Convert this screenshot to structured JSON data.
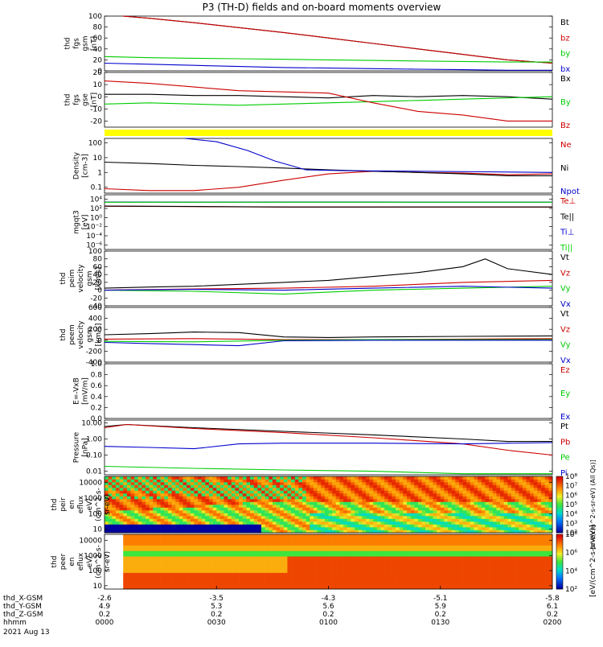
{
  "title": "P3 (TH-D) fields and on-board moments overview",
  "stripe_color": "#ffff00",
  "chart_data": [
    {
      "type": "line",
      "id": "p1",
      "ylabel": [
        "thd",
        "fgs",
        "gsm",
        "[nT]"
      ],
      "ylim": [
        0,
        100
      ],
      "ticks": [
        "0",
        "20",
        "40",
        "60",
        "80",
        "100"
      ],
      "tickvals": [
        0,
        20,
        40,
        60,
        80,
        100
      ],
      "series": [
        {
          "name": "Bt",
          "color": "#000000",
          "x": [
            0.04,
            0.1,
            0.2,
            0.3,
            0.4,
            0.5,
            0.6,
            0.7,
            0.8,
            0.9,
            1.0
          ],
          "y": [
            100,
            96,
            88,
            79,
            70,
            60,
            50,
            40,
            30,
            20,
            14
          ]
        },
        {
          "name": "bz",
          "color": "#cc0000",
          "x": [
            0.04,
            0.1,
            0.2,
            0.3,
            0.4,
            0.5,
            0.6,
            0.7,
            0.8,
            0.9,
            1.0
          ],
          "y": [
            100,
            96,
            88,
            79,
            70,
            60,
            50,
            40,
            30,
            20,
            14
          ]
        },
        {
          "name": "by",
          "color": "#00cc00",
          "x": [
            0.0,
            0.1,
            0.2,
            0.3,
            0.4,
            0.5,
            0.6,
            0.7,
            0.8,
            0.9,
            1.0
          ],
          "y": [
            26,
            24,
            23,
            22,
            21,
            20,
            19,
            18,
            17,
            16,
            16
          ]
        },
        {
          "name": "bx",
          "color": "#0000cc",
          "x": [
            0.0,
            0.1,
            0.2,
            0.3,
            0.4,
            0.5,
            0.6,
            0.7,
            0.8,
            0.9,
            1.0
          ],
          "y": [
            14,
            12,
            10,
            8,
            6,
            5,
            4,
            3,
            2,
            1,
            1
          ]
        }
      ]
    },
    {
      "type": "line",
      "id": "p2",
      "ylabel": [
        "thd",
        "fgs",
        "gse",
        "[nT]"
      ],
      "ylim": [
        -25,
        20
      ],
      "ticks": [
        "-20",
        "-10",
        "0",
        "10",
        "20"
      ],
      "tickvals": [
        -20,
        -10,
        0,
        10,
        20
      ],
      "series": [
        {
          "name": "Bx",
          "color": "#000000",
          "x": [
            0.0,
            0.1,
            0.2,
            0.3,
            0.4,
            0.5,
            0.6,
            0.7,
            0.8,
            0.9,
            1.0
          ],
          "y": [
            2,
            2,
            1,
            1,
            0,
            -1,
            1,
            0,
            1,
            0,
            -2
          ]
        },
        {
          "name": "By",
          "color": "#00cc00",
          "x": [
            0.0,
            0.1,
            0.2,
            0.3,
            0.4,
            0.5,
            0.6,
            0.7,
            0.8,
            0.9,
            1.0
          ],
          "y": [
            -6,
            -5,
            -6,
            -7,
            -6,
            -5,
            -4,
            -3,
            -2,
            -1,
            0
          ]
        },
        {
          "name": "Bz",
          "color": "#cc0000",
          "x": [
            0.0,
            0.1,
            0.2,
            0.3,
            0.4,
            0.5,
            0.6,
            0.7,
            0.8,
            0.9,
            1.0
          ],
          "y": [
            13,
            11,
            8,
            5,
            4,
            3,
            -5,
            -12,
            -15,
            -20,
            -20
          ]
        }
      ]
    },
    {
      "type": "line",
      "id": "p3",
      "ylabel": [
        "Density",
        "[cm-3]"
      ],
      "yscale": "log",
      "ylim": [
        0.04,
        200
      ],
      "ticks": [
        "0.1",
        "1",
        "10",
        "100"
      ],
      "tickvals": [
        0.1,
        1,
        10,
        100
      ],
      "series": [
        {
          "name": "Ne",
          "color": "#cc0000",
          "x": [
            0.0,
            0.1,
            0.2,
            0.3,
            0.4,
            0.5,
            0.6,
            0.7,
            0.8,
            0.9,
            1.0
          ],
          "y": [
            0.08,
            0.06,
            0.06,
            0.1,
            0.3,
            0.8,
            1.2,
            1.0,
            0.9,
            0.7,
            0.8
          ]
        },
        {
          "name": "Ni",
          "color": "#000000",
          "x": [
            0.0,
            0.1,
            0.2,
            0.3,
            0.4,
            0.5,
            0.6,
            0.7,
            0.8,
            0.9,
            1.0
          ],
          "y": [
            5,
            4,
            3,
            2.5,
            2,
            1.5,
            1.2,
            1.0,
            0.8,
            0.6,
            0.6
          ]
        },
        {
          "name": "Npot",
          "color": "#0000cc",
          "x": [
            0.18,
            0.25,
            0.32,
            0.38,
            0.45,
            0.55,
            0.7,
            0.85,
            1.0
          ],
          "y": [
            200,
            120,
            30,
            6,
            1.5,
            1.3,
            1.2,
            1.1,
            1.0
          ]
        }
      ]
    },
    {
      "type": "line",
      "id": "p4",
      "ylabel": [
        "mgqt3",
        "[eV]"
      ],
      "yscale": "log",
      "ylim": [
        1e-07,
        100000.0
      ],
      "ticks": [
        "10⁻⁶",
        "10⁻⁴",
        "10⁻²",
        "10⁰",
        "10²",
        "10⁴"
      ],
      "tickvals": [
        1e-06,
        0.0001,
        0.01,
        1,
        100,
        10000
      ],
      "series": [
        {
          "name": "Te⊥",
          "color": "#cc0000",
          "x": [
            0.0,
            0.2,
            0.4,
            0.6,
            0.8,
            1.0
          ],
          "y": [
            300,
            250,
            200,
            200,
            200,
            200
          ]
        },
        {
          "name": "Te||",
          "color": "#000000",
          "x": [
            0.0,
            0.2,
            0.4,
            0.6,
            0.8,
            1.0
          ],
          "y": [
            320,
            260,
            210,
            210,
            210,
            210
          ]
        },
        {
          "name": "Ti⊥",
          "color": "#0000cc",
          "x": [
            0.0,
            0.2,
            0.4,
            0.6,
            0.8,
            1.0
          ],
          "y": [
            2500,
            2400,
            2500,
            2500,
            2400,
            2400
          ]
        },
        {
          "name": "Ti||",
          "color": "#00cc00",
          "x": [
            0.0,
            0.2,
            0.4,
            0.6,
            0.8,
            1.0
          ],
          "y": [
            2300,
            2300,
            2300,
            2300,
            2300,
            2300
          ]
        }
      ]
    },
    {
      "type": "line",
      "id": "p5",
      "ylabel": [
        "thd",
        "peim",
        "velocity",
        "gsm",
        "[km/s]"
      ],
      "ylim": [
        -40,
        100
      ],
      "ticks": [
        "-40",
        "-20",
        "0",
        "20",
        "40",
        "60",
        "80",
        "100"
      ],
      "tickvals": [
        -40,
        -20,
        0,
        20,
        40,
        60,
        80,
        100
      ],
      "series": [
        {
          "name": "Vt",
          "color": "#000000",
          "x": [
            0.0,
            0.1,
            0.2,
            0.3,
            0.4,
            0.5,
            0.6,
            0.7,
            0.8,
            0.85,
            0.9,
            1.0
          ],
          "y": [
            5,
            8,
            10,
            15,
            20,
            25,
            35,
            45,
            60,
            80,
            55,
            40
          ]
        },
        {
          "name": "Vz",
          "color": "#cc0000",
          "x": [
            0.0,
            0.2,
            0.4,
            0.6,
            0.8,
            1.0
          ],
          "y": [
            0,
            3,
            5,
            10,
            20,
            25
          ]
        },
        {
          "name": "Vy",
          "color": "#00cc00",
          "x": [
            0.0,
            0.2,
            0.4,
            0.6,
            0.8,
            1.0
          ],
          "y": [
            0,
            -3,
            -10,
            0,
            5,
            10
          ]
        },
        {
          "name": "Vx",
          "color": "#0000cc",
          "x": [
            0.0,
            0.2,
            0.4,
            0.6,
            0.8,
            1.0
          ],
          "y": [
            0,
            2,
            0,
            5,
            10,
            5
          ]
        }
      ]
    },
    {
      "type": "line",
      "id": "p6",
      "ylabel": [
        "thd",
        "peem",
        "velocity",
        "gsm",
        "[km/s]"
      ],
      "ylim": [
        -400,
        600
      ],
      "ticks": [
        "-400",
        "-200",
        "0",
        "200",
        "400",
        "600"
      ],
      "tickvals": [
        -400,
        -200,
        0,
        200,
        400,
        600
      ],
      "series": [
        {
          "name": "Vt",
          "color": "#000000",
          "x": [
            0.0,
            0.1,
            0.2,
            0.3,
            0.4,
            0.5,
            0.6,
            0.8,
            1.0
          ],
          "y": [
            100,
            120,
            150,
            140,
            60,
            50,
            60,
            70,
            80
          ]
        },
        {
          "name": "Vz",
          "color": "#cc0000",
          "x": [
            0.0,
            0.2,
            0.4,
            0.6,
            0.8,
            1.0
          ],
          "y": [
            20,
            30,
            10,
            10,
            20,
            30
          ]
        },
        {
          "name": "Vy",
          "color": "#00cc00",
          "x": [
            0.0,
            0.2,
            0.4,
            0.6,
            0.8,
            1.0
          ],
          "y": [
            -20,
            -30,
            0,
            10,
            10,
            10
          ]
        },
        {
          "name": "Vx",
          "color": "#0000cc",
          "x": [
            0.0,
            0.1,
            0.2,
            0.3,
            0.4,
            0.6,
            1.0
          ],
          "y": [
            -40,
            -60,
            -80,
            -100,
            -10,
            0,
            0
          ]
        }
      ]
    },
    {
      "type": "line",
      "id": "p7",
      "ylabel": [
        "E=-VxB",
        "[mV/m]"
      ],
      "ylim": [
        0,
        1
      ],
      "ticks": [
        "0.0",
        "0.2",
        "0.4",
        "0.6",
        "0.8",
        "1.0"
      ],
      "tickvals": [
        0,
        0.2,
        0.4,
        0.6,
        0.8,
        1.0
      ],
      "series": [
        {
          "name": "Ez",
          "color": "#cc0000",
          "x": [],
          "y": []
        },
        {
          "name": "Ey",
          "color": "#00cc00",
          "x": [],
          "y": []
        },
        {
          "name": "Ex",
          "color": "#0000cc",
          "x": [],
          "y": []
        }
      ]
    },
    {
      "type": "line",
      "id": "p8",
      "ylabel": [
        "Pressure",
        "[nPa]"
      ],
      "yscale": "log",
      "ylim": [
        0.006,
        15
      ],
      "ticks": [
        "0.01",
        "0.10",
        "1.00",
        "10.00"
      ],
      "tickvals": [
        0.01,
        0.1,
        1,
        10
      ],
      "series": [
        {
          "name": "Pt",
          "color": "#000000",
          "x": [
            0.0,
            0.05,
            0.2,
            0.4,
            0.6,
            0.8,
            0.9,
            1.0
          ],
          "y": [
            6,
            8,
            5,
            3,
            1.8,
            1.0,
            0.7,
            0.7
          ]
        },
        {
          "name": "Pb",
          "color": "#cc0000",
          "x": [
            0.0,
            0.05,
            0.2,
            0.4,
            0.6,
            0.8,
            0.9,
            1.0
          ],
          "y": [
            5,
            8,
            4.5,
            2.5,
            1.2,
            0.5,
            0.2,
            0.1
          ]
        },
        {
          "name": "Pe",
          "color": "#00cc00",
          "x": [
            0.0,
            0.2,
            0.4,
            0.6,
            0.8,
            1.0
          ],
          "y": [
            0.02,
            0.015,
            0.012,
            0.01,
            0.007,
            0.007
          ]
        },
        {
          "name": "Pi",
          "color": "#0000cc",
          "x": [
            0.0,
            0.1,
            0.2,
            0.3,
            0.4,
            0.6,
            0.8,
            1.0
          ],
          "y": [
            0.35,
            0.3,
            0.25,
            0.5,
            0.55,
            0.55,
            0.5,
            0.6
          ]
        }
      ]
    },
    {
      "type": "heatmap",
      "id": "s1",
      "ylabel": [
        "thd",
        "peir",
        "en",
        "eflux",
        "eV/",
        "(cm^2-s-",
        "sr-eV)"
      ],
      "yscale": "log",
      "ylim": [
        6,
        25000
      ],
      "ticks": [
        "10",
        "100",
        "1000",
        "10000"
      ],
      "tickvals": [
        10,
        100,
        1000,
        10000
      ],
      "colorbar_ticks": [
        "10²",
        "10³",
        "10⁴",
        "10⁵",
        "10⁶",
        "10⁷",
        "10⁸"
      ],
      "colorbar_range": [
        2,
        8
      ]
    },
    {
      "type": "heatmap",
      "id": "s2",
      "ylabel": [
        "thd",
        "peer",
        "en",
        "eflux",
        "eV/",
        "(cm^2-s-",
        "sr-eV)"
      ],
      "yscale": "log",
      "ylim": [
        6,
        25000
      ],
      "ticks": [
        "10",
        "100",
        "1000",
        "10000"
      ],
      "tickvals": [
        10,
        100,
        1000,
        10000
      ],
      "colorbar_ticks": [
        "10²",
        "10⁴",
        "10⁶",
        "10⁸"
      ],
      "colorbar_range": [
        1,
        9
      ]
    }
  ],
  "colorbar_unit": "[eV/(cm^2-s-sr-eV)]",
  "colorbar_unit_alt": "[eV/(cm^2-s-sr-eV) (All Qs)]",
  "xaxis": {
    "rows": [
      {
        "label": "thd_X-GSM",
        "values": [
          "-2.6",
          "-3.5",
          "-4.3",
          "-5.1",
          "-5.8"
        ]
      },
      {
        "label": "thd_Y-GSM",
        "values": [
          "4.9",
          "5.3",
          "5.6",
          "5.9",
          "6.1"
        ]
      },
      {
        "label": "thd_Z-GSM",
        "values": [
          "0.2",
          "0.2",
          "0.2",
          "0.2",
          "0.2"
        ]
      },
      {
        "label": "hhmm",
        "values": [
          "0000",
          "0030",
          "0100",
          "0130",
          "0200"
        ]
      }
    ],
    "date": "2021 Aug 13"
  }
}
